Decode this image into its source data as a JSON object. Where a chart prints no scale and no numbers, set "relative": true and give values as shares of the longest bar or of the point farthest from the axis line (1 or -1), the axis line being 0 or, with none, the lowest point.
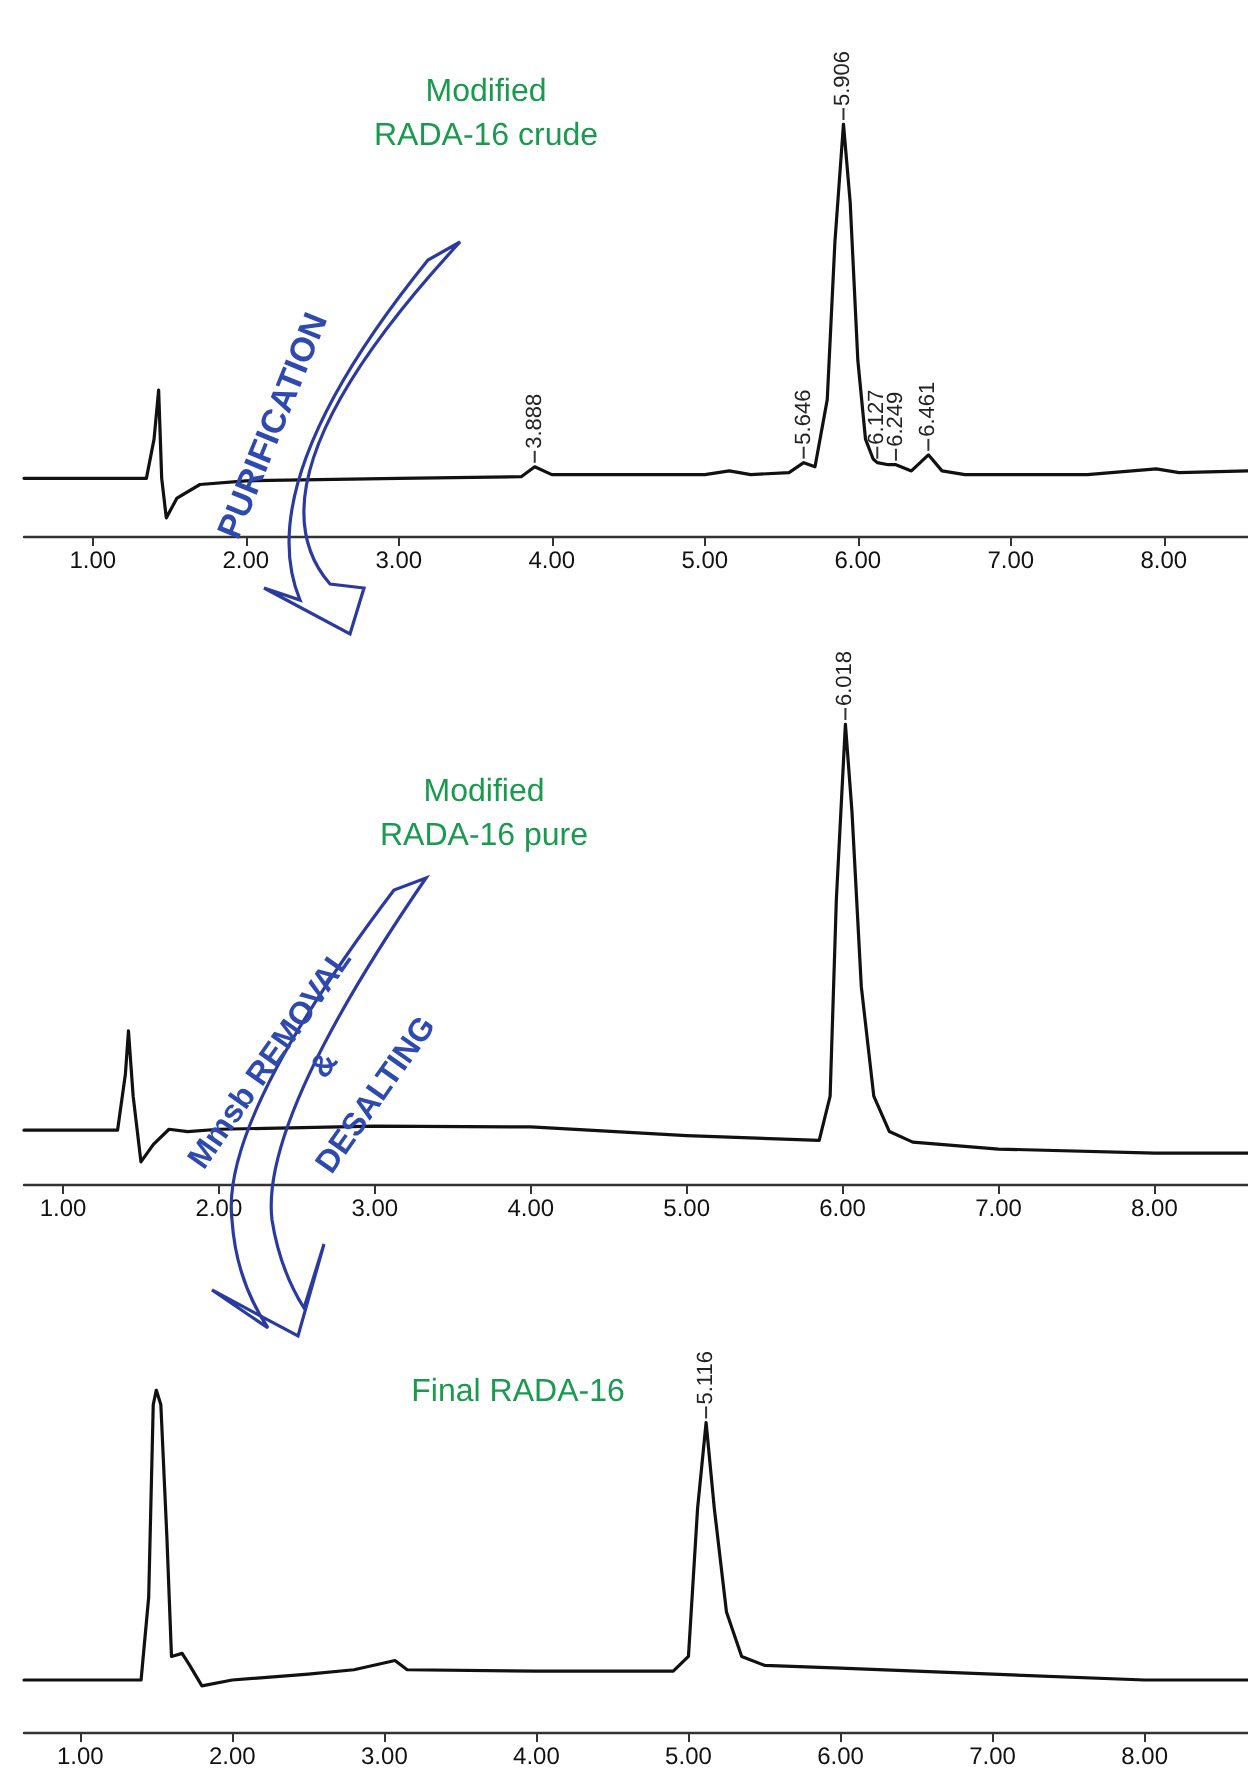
{
  "chart_data": [
    {
      "type": "line",
      "title": "Modified\nRADA-16 crude",
      "relative": true,
      "color": "#111111",
      "grid": false,
      "marker": "none",
      "line_style": "solid",
      "xlim": [
        0.55,
        8.55
      ],
      "xticks": [
        {
          "value": 1,
          "label": "1.00"
        },
        {
          "value": 2,
          "label": "2.00"
        },
        {
          "value": 3,
          "label": "3.00"
        },
        {
          "value": 4,
          "label": "4.00"
        },
        {
          "value": 5,
          "label": "5.00"
        },
        {
          "value": 6,
          "label": "6.00"
        },
        {
          "value": 7,
          "label": "7.00"
        },
        {
          "value": 8,
          "label": "8.00"
        }
      ],
      "x": [
        0.55,
        1.35,
        1.4,
        1.43,
        1.45,
        1.48,
        1.55,
        1.7,
        2.0,
        3.0,
        3.8,
        3.888,
        4.0,
        5.0,
        5.16,
        5.3,
        5.55,
        5.646,
        5.72,
        5.8,
        5.85,
        5.906,
        5.95,
        6.0,
        6.05,
        6.1,
        6.127,
        6.2,
        6.249,
        6.35,
        6.461,
        6.55,
        6.7,
        7.5,
        7.95,
        8.1,
        8.55
      ],
      "values": [
        0.14,
        0.14,
        0.235,
        0.354,
        0.14,
        0.044,
        0.092,
        0.125,
        0.134,
        0.14,
        0.144,
        0.168,
        0.149,
        0.149,
        0.158,
        0.149,
        0.154,
        0.178,
        0.168,
        0.331,
        0.713,
        1.0,
        0.809,
        0.426,
        0.235,
        0.187,
        0.178,
        0.173,
        0.173,
        0.158,
        0.197,
        0.158,
        0.149,
        0.149,
        0.163,
        0.154,
        0.158
      ],
      "annotations": [
        {
          "text": "3.888",
          "x": 3.888,
          "y": 0.168
        },
        {
          "text": "5.646",
          "x": 5.646,
          "y": 0.178
        },
        {
          "text": "5.906",
          "x": 5.906,
          "y": 1.0
        },
        {
          "text": "6.127",
          "x": 6.127,
          "y": 0.178
        },
        {
          "text": "6.249",
          "x": 6.249,
          "y": 0.173
        },
        {
          "text": "6.461",
          "x": 6.461,
          "y": 0.197
        },
        "PURIFICATION"
      ]
    },
    {
      "type": "line",
      "title": "Modified\nRADA-16 pure",
      "relative": true,
      "color": "#111111",
      "grid": false,
      "marker": "none",
      "line_style": "solid",
      "xlim": [
        0.75,
        8.6
      ],
      "xticks": [
        {
          "value": 1,
          "label": "1.00"
        },
        {
          "value": 2,
          "label": "2.00"
        },
        {
          "value": 3,
          "label": "3.00"
        },
        {
          "value": 4,
          "label": "4.00"
        },
        {
          "value": 5,
          "label": "5.00"
        },
        {
          "value": 6,
          "label": "6.00"
        },
        {
          "value": 7,
          "label": "7.00"
        },
        {
          "value": 8,
          "label": "8.00"
        }
      ],
      "x": [
        0.75,
        1.35,
        1.4,
        1.42,
        1.45,
        1.5,
        1.58,
        1.68,
        1.8,
        2.0,
        3.0,
        4.0,
        5.0,
        5.85,
        5.92,
        5.96,
        6.018,
        6.06,
        6.12,
        6.2,
        6.3,
        6.45,
        7.0,
        8.0,
        8.6
      ],
      "values": [
        0.117,
        0.117,
        0.238,
        0.333,
        0.191,
        0.048,
        0.086,
        0.119,
        0.114,
        0.119,
        0.126,
        0.124,
        0.105,
        0.095,
        0.191,
        0.619,
        1.0,
        0.81,
        0.429,
        0.191,
        0.114,
        0.091,
        0.076,
        0.067,
        0.067
      ],
      "annotations": [
        {
          "text": "6.018",
          "x": 6.018,
          "y": 1.0
        },
        "Mmsb REMOVAL",
        "&",
        "DESALTING"
      ]
    },
    {
      "type": "line",
      "title": "Final RADA-16",
      "relative": true,
      "color": "#111111",
      "grid": false,
      "marker": "none",
      "line_style": "solid",
      "xlim": [
        0.63,
        8.68
      ],
      "xticks": [
        {
          "value": 1,
          "label": "1.00"
        },
        {
          "value": 2,
          "label": "2.00"
        },
        {
          "value": 3,
          "label": "3.00"
        },
        {
          "value": 4,
          "label": "4.00"
        },
        {
          "value": 5,
          "label": "5.00"
        },
        {
          "value": 6,
          "label": "6.00"
        },
        {
          "value": 7,
          "label": "7.00"
        },
        {
          "value": 8,
          "label": "8.00"
        }
      ],
      "x": [
        0.63,
        1.4,
        1.45,
        1.48,
        1.5,
        1.53,
        1.57,
        1.6,
        1.67,
        1.72,
        1.8,
        2.0,
        2.5,
        2.8,
        3.07,
        3.15,
        4.0,
        4.9,
        5.0,
        5.06,
        5.116,
        5.17,
        5.25,
        5.35,
        5.5,
        6.0,
        7.0,
        8.0,
        8.68
      ],
      "values": [
        0.152,
        0.152,
        0.394,
        0.957,
        1.0,
        0.957,
        0.567,
        0.221,
        0.23,
        0.195,
        0.135,
        0.152,
        0.169,
        0.182,
        0.209,
        0.182,
        0.178,
        0.178,
        0.221,
        0.654,
        0.905,
        0.654,
        0.351,
        0.221,
        0.195,
        0.187,
        0.169,
        0.152,
        0.152
      ],
      "annotations": [
        {
          "text": "5.116",
          "x": 5.116,
          "y": 0.905
        }
      ]
    }
  ]
}
